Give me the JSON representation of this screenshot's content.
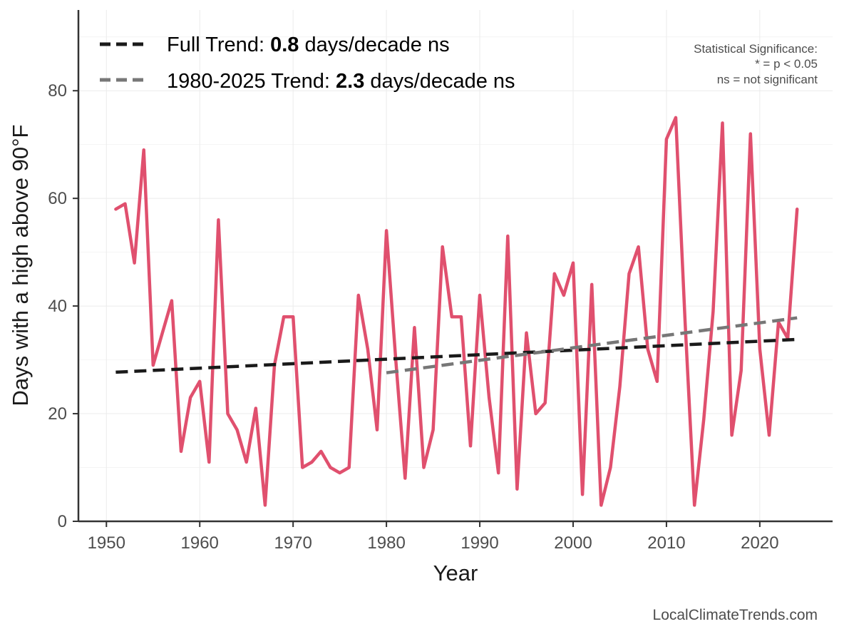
{
  "chart_data": {
    "type": "line",
    "xlabel": "Year",
    "ylabel": "Days with a high above 90°F",
    "xlim": [
      1947,
      2027.8
    ],
    "ylim": [
      0,
      95
    ],
    "xticks": [
      1950,
      1960,
      1970,
      1980,
      1990,
      2000,
      2010,
      2020
    ],
    "yticks": [
      0,
      20,
      40,
      60,
      80
    ],
    "grid": true,
    "series": [
      {
        "color": "#e0506e",
        "x": [
          1951,
          1952,
          1953,
          1954,
          1955,
          1956,
          1957,
          1958,
          1959,
          1960,
          1961,
          1962,
          1963,
          1964,
          1965,
          1966,
          1967,
          1968,
          1969,
          1970,
          1971,
          1972,
          1973,
          1974,
          1975,
          1976,
          1977,
          1978,
          1979,
          1980,
          1981,
          1982,
          1983,
          1984,
          1985,
          1986,
          1987,
          1988,
          1989,
          1990,
          1991,
          1992,
          1993,
          1994,
          1995,
          1996,
          1997,
          1998,
          1999,
          2000,
          2001,
          2002,
          2003,
          2004,
          2005,
          2006,
          2007,
          2008,
          2009,
          2010,
          2011,
          2012,
          2013,
          2014,
          2015,
          2016,
          2017,
          2018,
          2019,
          2020,
          2021,
          2022,
          2023,
          2024
        ],
        "values": [
          58,
          59,
          48,
          69,
          29,
          35,
          41,
          13,
          23,
          26,
          11,
          56,
          20,
          17,
          11,
          21,
          3,
          29,
          38,
          38,
          10,
          11,
          13,
          10,
          9,
          10,
          42,
          32,
          17,
          54,
          30,
          8,
          36,
          10,
          17,
          51,
          38,
          38,
          14,
          42,
          23,
          9,
          53,
          6,
          35,
          20,
          22,
          46,
          42,
          48,
          5,
          44,
          3,
          10,
          25,
          46,
          51,
          32,
          26,
          71,
          75,
          37,
          3,
          19,
          39,
          74,
          16,
          28,
          72,
          32,
          16,
          37,
          34,
          58
        ]
      },
      {
        "color": "#1a1a1a",
        "dashed": true,
        "x": [
          1951,
          2024
        ],
        "values": [
          27.7,
          33.8
        ]
      },
      {
        "color": "#777777",
        "dashed": true,
        "x": [
          1980,
          2024
        ],
        "values": [
          27.6,
          37.8
        ]
      }
    ],
    "legend": {
      "placement": "top-left",
      "entries": [
        {
          "prefix": "Full Trend: ",
          "value": "0.8",
          "suffix": " days/decade ns",
          "color": "#1a1a1a"
        },
        {
          "prefix": "1980-2025 Trend: ",
          "value": "2.3",
          "suffix": " days/decade ns",
          "color": "#777777"
        }
      ]
    },
    "annotations": {
      "significance": [
        "Statistical Significance:",
        "* = p < 0.05",
        "ns = not significant"
      ],
      "credit": "LocalClimateTrends.com"
    }
  }
}
